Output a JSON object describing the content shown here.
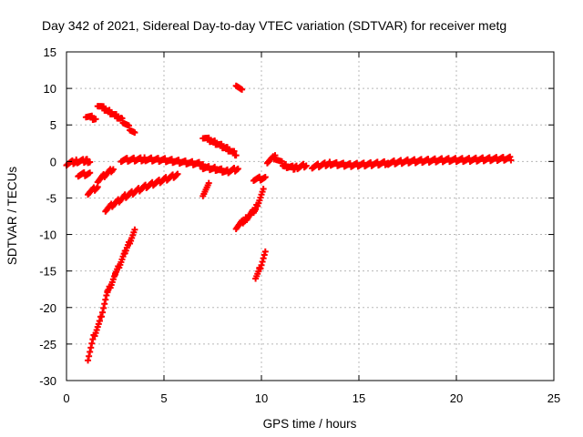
{
  "chart_data": {
    "type": "scatter",
    "title": "Day 342 of 2021, Sidereal Day-to-day VTEC variation (SDTVAR) for receiver metg",
    "xlabel": "GPS time / hours",
    "ylabel": "SDTVAR / TECUs",
    "xlim": [
      0,
      25
    ],
    "ylim": [
      -30,
      15
    ],
    "xticks": [
      0,
      5,
      10,
      15,
      20,
      25
    ],
    "yticks": [
      -30,
      -25,
      -20,
      -15,
      -10,
      -5,
      0,
      5,
      10,
      15
    ],
    "grid": true,
    "marker_color": "#ff0000",
    "segments": [
      {
        "x": [
          0.0,
          0.5,
          1.0,
          1.2
        ],
        "y": [
          -0.3,
          0.0,
          0.1,
          0.0
        ]
      },
      {
        "x": [
          0.6,
          1.2
        ],
        "y": [
          -1.8,
          -1.7
        ]
      },
      {
        "x": [
          1.0,
          1.5
        ],
        "y": [
          6.3,
          5.8
        ]
      },
      {
        "x": [
          1.1,
          1.6
        ],
        "y": [
          -4.3,
          -3.5
        ]
      },
      {
        "x": [
          1.1,
          1.4,
          1.7,
          2.1,
          2.5,
          3.0,
          3.5
        ],
        "y": [
          -27.0,
          -24.0,
          -22.0,
          -18.0,
          -15.5,
          -12.5,
          -9.5
        ]
      },
      {
        "x": [
          1.6,
          2.4
        ],
        "y": [
          -2.6,
          -1.0
        ]
      },
      {
        "x": [
          1.6,
          2.2,
          2.8,
          3.5
        ],
        "y": [
          7.8,
          6.8,
          5.8,
          3.8
        ]
      },
      {
        "x": [
          2.0,
          3.0,
          4.0,
          5.0,
          5.7
        ],
        "y": [
          -6.6,
          -4.8,
          -3.5,
          -2.5,
          -1.8
        ]
      },
      {
        "x": [
          2.8,
          4.0,
          5.0,
          6.0,
          7.0
        ],
        "y": [
          0.2,
          0.3,
          0.2,
          -0.1,
          -0.4
        ]
      },
      {
        "x": [
          7.0,
          7.6,
          8.2,
          8.7
        ],
        "y": [
          3.4,
          2.6,
          1.8,
          1.0
        ]
      },
      {
        "x": [
          7.0,
          7.6,
          8.2,
          8.8
        ],
        "y": [
          -0.8,
          -1.0,
          -1.4,
          -1.0
        ]
      },
      {
        "x": [
          7.0,
          7.3
        ],
        "y": [
          -4.5,
          -3.2
        ]
      },
      {
        "x": [
          8.7,
          9.0
        ],
        "y": [
          10.6,
          9.6
        ]
      },
      {
        "x": [
          8.7,
          9.2,
          9.7,
          10.1
        ],
        "y": [
          -9.0,
          -7.9,
          -6.5,
          -4.0
        ]
      },
      {
        "x": [
          9.6,
          10.2
        ],
        "y": [
          -2.4,
          -2.3
        ]
      },
      {
        "x": [
          9.7,
          9.9,
          10.2
        ],
        "y": [
          -15.8,
          -14.8,
          -12.5
        ]
      },
      {
        "x": [
          10.3,
          10.7,
          11.2,
          11.7,
          12.3
        ],
        "y": [
          0.0,
          0.6,
          -0.6,
          -0.9,
          -0.5
        ]
      },
      {
        "x": [
          12.6,
          13.5,
          14.5,
          15.5,
          16.5
        ],
        "y": [
          -0.7,
          -0.3,
          -0.5,
          -0.4,
          -0.2
        ]
      },
      {
        "x": [
          16.5,
          17.5,
          18.5,
          19.5,
          20.5,
          21.5,
          22.8
        ],
        "y": [
          -0.2,
          0.0,
          0.1,
          0.2,
          0.2,
          0.3,
          0.4
        ]
      }
    ]
  }
}
